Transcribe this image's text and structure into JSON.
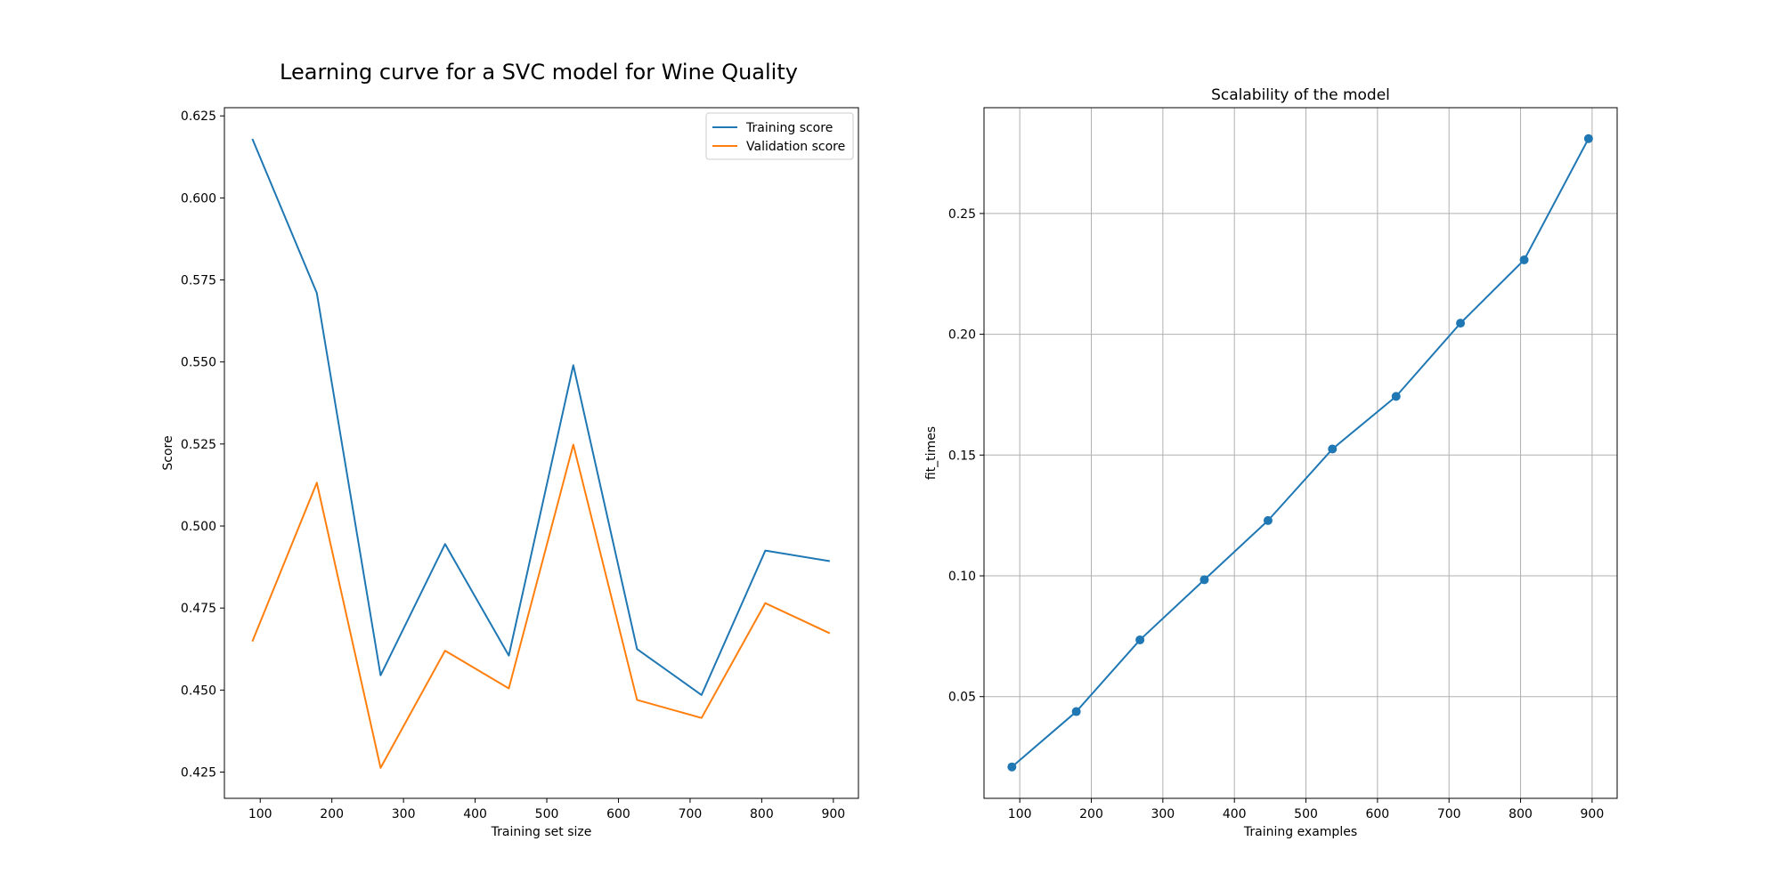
{
  "figure": {
    "suptitle": "Learning curve for a SVC model for Wine Quality"
  },
  "chart_data": [
    {
      "type": "line",
      "title": "",
      "xlabel": "Training set size",
      "ylabel": "Score",
      "xlim": [
        50,
        935
      ],
      "ylim": [
        0.417,
        0.6275
      ],
      "xticks": [
        100,
        200,
        300,
        400,
        500,
        600,
        700,
        800,
        900
      ],
      "yticks": [
        0.425,
        0.45,
        0.475,
        0.5,
        0.525,
        0.55,
        0.575,
        0.6,
        0.625
      ],
      "grid": false,
      "legend_position": "top-right",
      "x": [
        89,
        179,
        268,
        358,
        447,
        537,
        626,
        716,
        805,
        895
      ],
      "series": [
        {
          "name": "Training score",
          "color": "#1f77b4",
          "values": [
            0.618,
            0.571,
            0.4545,
            0.4945,
            0.4605,
            0.549,
            0.4625,
            0.4485,
            0.4925,
            0.4893
          ]
        },
        {
          "name": "Validation score",
          "color": "#ff7f0e",
          "values": [
            0.4648,
            0.5132,
            0.4263,
            0.462,
            0.4505,
            0.5248,
            0.447,
            0.4415,
            0.4765,
            0.4673
          ]
        }
      ]
    },
    {
      "type": "line",
      "title": "Scalability of the model",
      "xlabel": "Training examples",
      "ylabel": "fit_times",
      "xlim": [
        50,
        935
      ],
      "ylim": [
        0.0079,
        0.2938
      ],
      "xticks": [
        100,
        200,
        300,
        400,
        500,
        600,
        700,
        800,
        900
      ],
      "yticks": [
        0.05,
        0.1,
        0.15,
        0.2,
        0.25
      ],
      "grid": true,
      "markers": true,
      "x": [
        89,
        179,
        268,
        358,
        447,
        537,
        626,
        716,
        805,
        895
      ],
      "series": [
        {
          "name": "",
          "color": "#1f77b4",
          "values": [
            0.0209,
            0.0438,
            0.0735,
            0.0984,
            0.1229,
            0.1525,
            0.1743,
            0.2046,
            0.2308,
            0.281
          ]
        }
      ]
    }
  ]
}
